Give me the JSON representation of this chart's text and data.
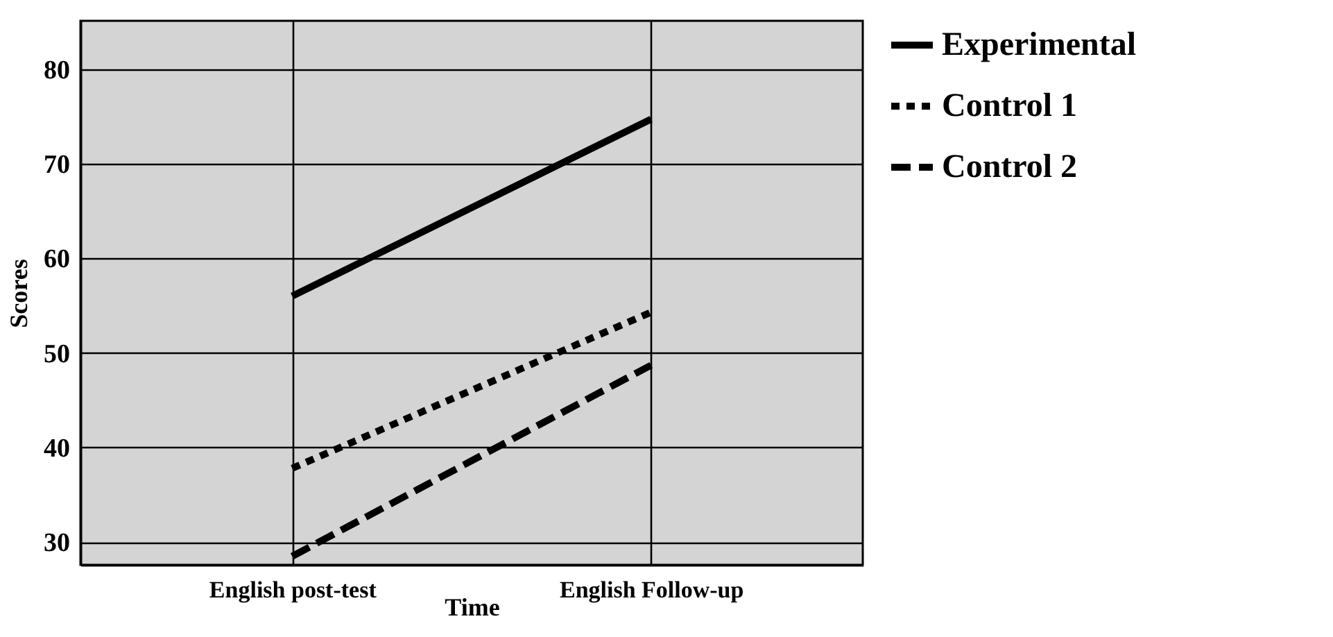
{
  "chart_data": {
    "type": "line",
    "xlabel": "Time",
    "ylabel": "Scores",
    "categories": [
      "English post-test",
      "English Follow-up"
    ],
    "ylim": [
      27.6,
      85.1
    ],
    "yticks": [
      30,
      40,
      50,
      60,
      70,
      80
    ],
    "grid": true,
    "legend": "right",
    "marker": "none",
    "series": [
      {
        "name": "Experimental",
        "color": "#000000",
        "line_style": "solid",
        "values": [
          56,
          74.7
        ]
      },
      {
        "name": "Control 1",
        "color": "#000000",
        "line_style": "dotted",
        "values": [
          37.8,
          54.3
        ]
      },
      {
        "name": "Control 2",
        "color": "#000000",
        "line_style": "dashed",
        "values": [
          28.5,
          48.7
        ]
      }
    ]
  }
}
